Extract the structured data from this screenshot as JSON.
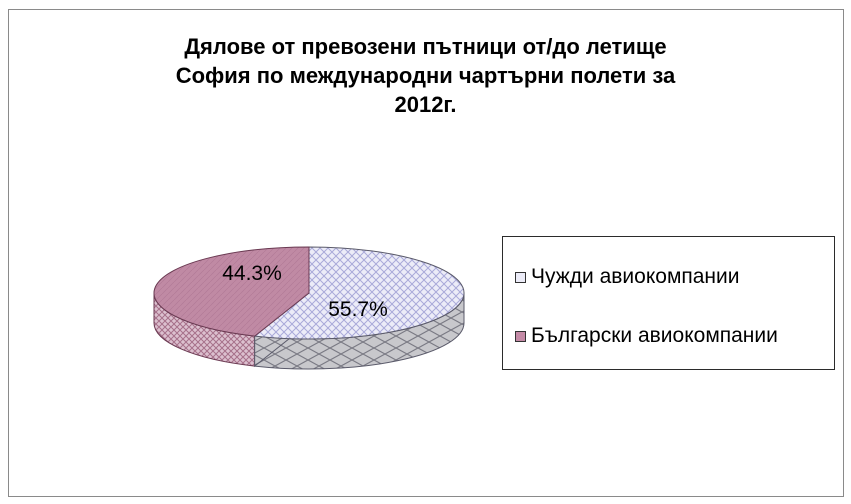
{
  "chart_data": {
    "type": "pie",
    "title_lines": [
      "Дялове от превозени пътници от/до летище",
      "София по международни чартърни полети за",
      "2012г."
    ],
    "slices": [
      {
        "label": "Чужди авиокомпании",
        "value": 55.7,
        "value_label": "55.7%",
        "color": "#e6e6f5",
        "pattern": "crosshatch-lavender"
      },
      {
        "label": "Български авиокомпании",
        "value": 44.3,
        "value_label": "44.3%",
        "color": "#c48aa6",
        "pattern": "mauve"
      }
    ],
    "legend_position": "right",
    "three_d": true
  }
}
